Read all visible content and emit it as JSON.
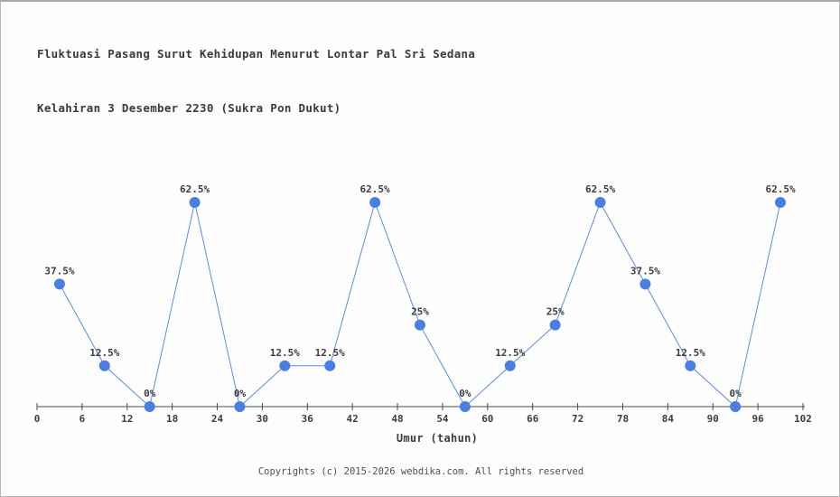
{
  "title": {
    "line1": "Fluktuasi Pasang Surut Kehidupan Menurut Lontar Pal Sri Sedana",
    "line2": "Kelahiran 3 Desember 2230 (Sukra Pon Dukut)"
  },
  "footer": "Copyrights (c) 2015-2026 webdika.com. All rights reserved",
  "chart_data": {
    "type": "line",
    "title": "Fluktuasi Pasang Surut Kehidupan Menurut Lontar Pal Sri Sedana Kelahiran 3 Desember 2230 (Sukra Pon Dukut)",
    "xlabel": "Umur (tahun)",
    "ylabel": "",
    "x": [
      3,
      9,
      15,
      21,
      27,
      33,
      39,
      45,
      51,
      57,
      63,
      69,
      75,
      81,
      87,
      93,
      99
    ],
    "values": [
      37.5,
      12.5,
      0,
      62.5,
      0,
      12.5,
      12.5,
      62.5,
      25,
      0,
      12.5,
      25,
      62.5,
      37.5,
      12.5,
      0,
      62.5
    ],
    "point_labels": [
      "37.5%",
      "12.5%",
      "0%",
      "62.5%",
      "0%",
      "12.5%",
      "12.5%",
      "62.5%",
      "25%",
      "0%",
      "12.5%",
      "25%",
      "62.5%",
      "37.5%",
      "12.5%",
      "0%",
      "62.5%"
    ],
    "x_ticks": [
      0,
      6,
      12,
      18,
      24,
      30,
      36,
      42,
      48,
      54,
      60,
      66,
      72,
      78,
      84,
      90,
      96,
      102
    ],
    "xlim": [
      0,
      102
    ],
    "ylim": [
      0,
      70
    ],
    "grid": false,
    "legend": "none",
    "line_color": "#5c8ce0",
    "marker_color": "#4a7ee0",
    "axis_color": "#4a4a4a",
    "label_color": "#3d3d3d"
  },
  "colors": {
    "background": "#fdfdfd",
    "border": "#b5b5b5",
    "title_text": "#3b3b3b",
    "footer_text": "#4f4f4f"
  }
}
